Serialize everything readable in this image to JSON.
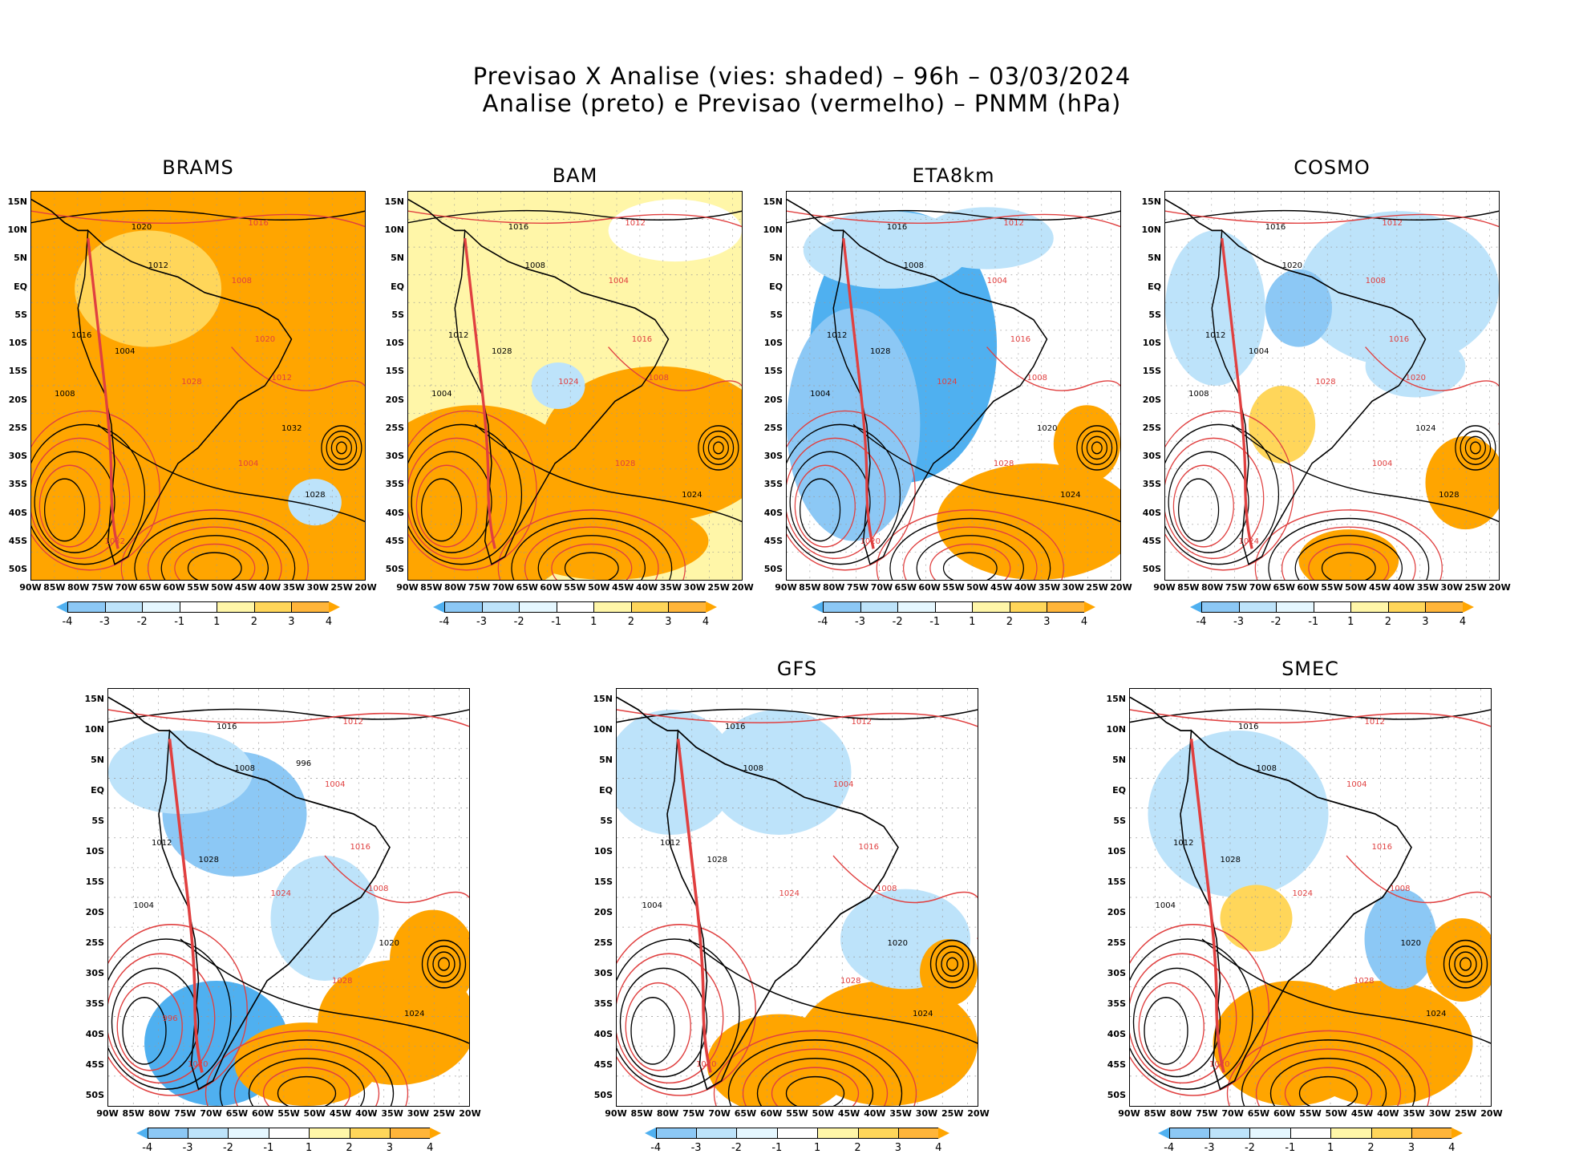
{
  "title": {
    "line1": "Previsao X Analise (vies: shaded) – 96h – 03/03/2024",
    "line2": "Analise (preto) e Previsao (vermelho) – PNMM (hPa)"
  },
  "lat_labels": [
    "15N",
    "10N",
    "5N",
    "EQ",
    "5S",
    "10S",
    "15S",
    "20S",
    "25S",
    "30S",
    "35S",
    "40S",
    "45S",
    "50S"
  ],
  "lon_labels": [
    "90W",
    "85W",
    "80W",
    "75W",
    "70W",
    "65W",
    "60W",
    "55W",
    "50W",
    "45W",
    "40W",
    "35W",
    "30W",
    "25W",
    "20W"
  ],
  "colorbar": {
    "ticks": [
      "-4",
      "-3",
      "-2",
      "-1",
      "1",
      "2",
      "3",
      "4"
    ],
    "colors": [
      "#4fb0f0",
      "#8cc8f5",
      "#bde3fa",
      "#e5f7ff",
      "#ffffff",
      "#fff6a8",
      "#ffd65a",
      "#ffb53a",
      "#ffa500"
    ]
  },
  "panels": [
    {
      "name": "BRAMS",
      "labels": [
        "1020",
        "1016",
        "1012",
        "1008",
        "1004",
        "1028",
        "1032"
      ]
    },
    {
      "name": "BAM",
      "labels": [
        "1016",
        "1012",
        "1008",
        "1004",
        "1028",
        "1024"
      ]
    },
    {
      "name": "ETA8km",
      "labels": [
        "1016",
        "1012",
        "1008",
        "1004",
        "1028",
        "1024",
        "1020"
      ]
    },
    {
      "name": "COSMO",
      "labels": [
        "1016",
        "1012",
        "1020",
        "1008",
        "1004",
        "1028",
        "1024"
      ]
    },
    {
      "name": "",
      "labels": [
        "1016",
        "1012",
        "1008",
        "1004",
        "1028",
        "1024",
        "1020",
        "996"
      ]
    },
    {
      "name": "GFS",
      "labels": [
        "1016",
        "1012",
        "1008",
        "1004",
        "1028",
        "1024",
        "1020"
      ]
    },
    {
      "name": "SMEC",
      "labels": [
        "1016",
        "1012",
        "1008",
        "1004",
        "1028",
        "1024",
        "1020"
      ]
    }
  ],
  "palette": {
    "orange": "#ffa500",
    "yellow": "#ffd65a",
    "lightyellow": "#fff6a8",
    "blue": "#4fb0f0",
    "midblue": "#8cc8f5",
    "lightblue": "#bde3fa",
    "analysis_contour": "#000000",
    "forecast_contour": "#e04040"
  }
}
